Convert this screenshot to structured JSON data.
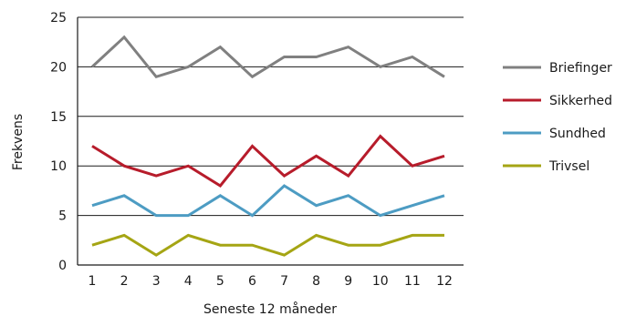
{
  "chart_data": {
    "type": "line",
    "title": "",
    "xlabel": "Seneste 12 måneder",
    "ylabel": "Frekvens",
    "x": [
      1,
      2,
      3,
      4,
      5,
      6,
      7,
      8,
      9,
      10,
      11,
      12
    ],
    "ylim": [
      0,
      25
    ],
    "yticks": [
      0,
      5,
      10,
      15,
      20,
      25
    ],
    "grid": true,
    "legend_position": "right",
    "series": [
      {
        "name": "Briefinger",
        "color": "#808080",
        "values": [
          20,
          23,
          19,
          20,
          22,
          19,
          21,
          21,
          22,
          20,
          21,
          19
        ]
      },
      {
        "name": "Sikkerhed",
        "color": "#b71c2b",
        "values": [
          12,
          10,
          9,
          10,
          8,
          12,
          9,
          11,
          9,
          13,
          10,
          11
        ]
      },
      {
        "name": "Sundhed",
        "color": "#4d9cc3",
        "values": [
          6,
          7,
          5,
          5,
          7,
          5,
          8,
          6,
          7,
          5,
          6,
          7
        ]
      },
      {
        "name": "Trivsel",
        "color": "#a5a514",
        "values": [
          2,
          3,
          1,
          3,
          2,
          2,
          1,
          3,
          2,
          2,
          3,
          3
        ]
      }
    ]
  }
}
